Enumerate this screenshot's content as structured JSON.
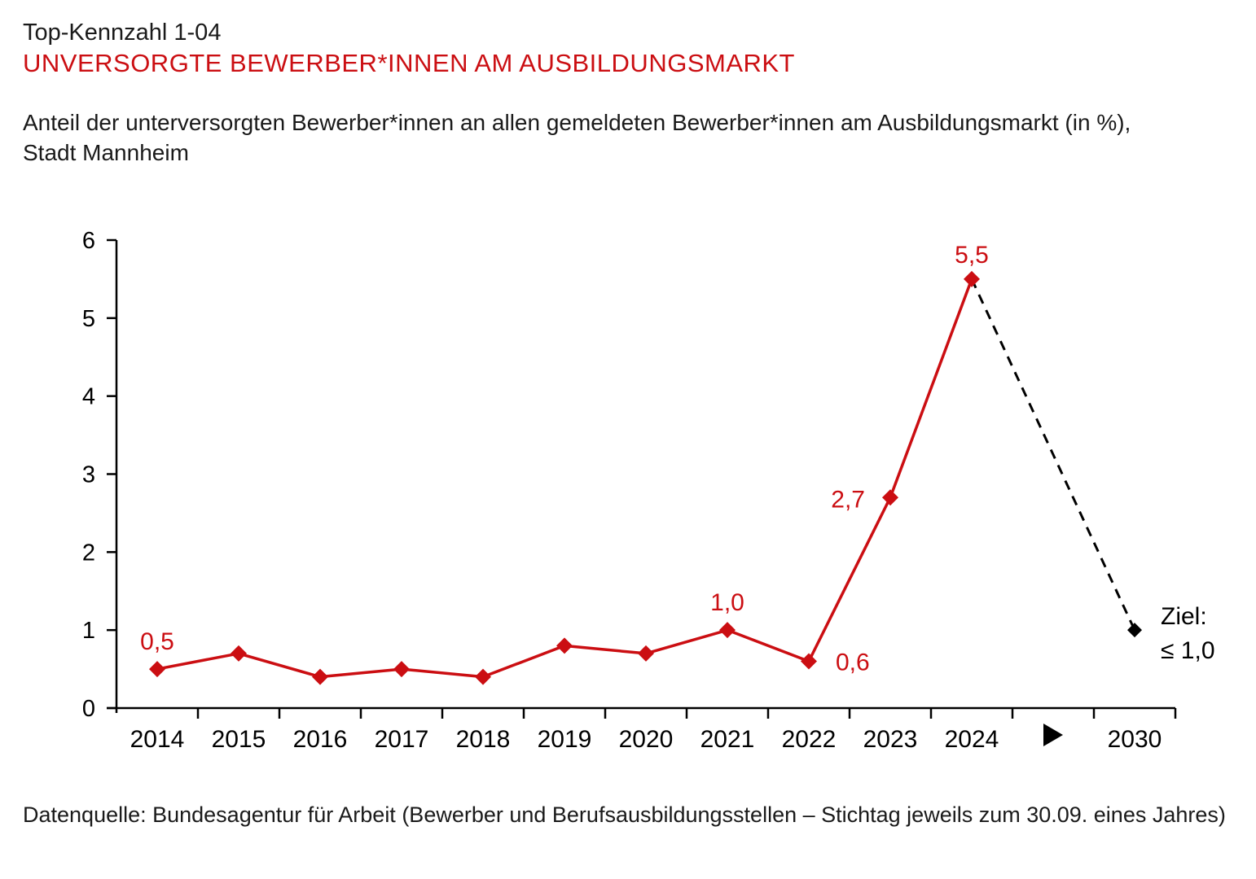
{
  "page": {
    "kicker": "Top-Kennzahl 1-04",
    "title": "UNVERSORGTE BEWERBER*INNEN AM AUSBILDUNGSMARKT",
    "subtitle_line1": "Anteil der unterversorgten Bewerber*innen an allen gemeldeten Bewerber*innen am Ausbildungsmarkt (in %),",
    "subtitle_line2": "Stadt Mannheim",
    "source": "Datenquelle: Bundesagentur für Arbeit (Bewerber und Berufsausbildungsstellen – Stichtag jeweils zum 30.09. eines Jahres)"
  },
  "colors": {
    "accent_red": "#cb0e12",
    "ink": "#1a1a1a",
    "axis_black": "#000000"
  },
  "chart_data": {
    "type": "line",
    "title": "UNVERSORGTE BEWERBER*INNEN AM AUSBILDUNGSMARKT",
    "subtitle": "Anteil der unterversorgten Bewerber*innen an allen gemeldeten Bewerber*innen am Ausbildungsmarkt (in %), Stadt Mannheim",
    "categories": [
      "2014",
      "2015",
      "2016",
      "2017",
      "2018",
      "2019",
      "2020",
      "2021",
      "2022",
      "2023",
      "2024",
      "▶",
      "2030"
    ],
    "values": [
      0.5,
      0.7,
      0.4,
      0.5,
      0.4,
      0.8,
      0.7,
      1.0,
      0.6,
      2.7,
      5.5
    ],
    "value_labels": [
      {
        "index": 0,
        "text": "0,5",
        "pos": "above"
      },
      {
        "index": 7,
        "text": "1,0",
        "pos": "above"
      },
      {
        "index": 8,
        "text": "0,6",
        "pos": "right"
      },
      {
        "index": 9,
        "text": "2,7",
        "pos": "left"
      },
      {
        "index": 10,
        "text": "5,5",
        "pos": "above-close"
      }
    ],
    "target": {
      "category": "2030",
      "value": 1.0,
      "label_line1": "Ziel:",
      "label_line2": "≤ 1,0"
    },
    "ylim": [
      0,
      6
    ],
    "yticks": [
      0,
      1,
      2,
      3,
      4,
      5,
      6
    ],
    "xlabel": "",
    "ylabel": "",
    "grid": false,
    "legend": false,
    "series_color": "#cb0e12",
    "target_color": "#000000"
  }
}
